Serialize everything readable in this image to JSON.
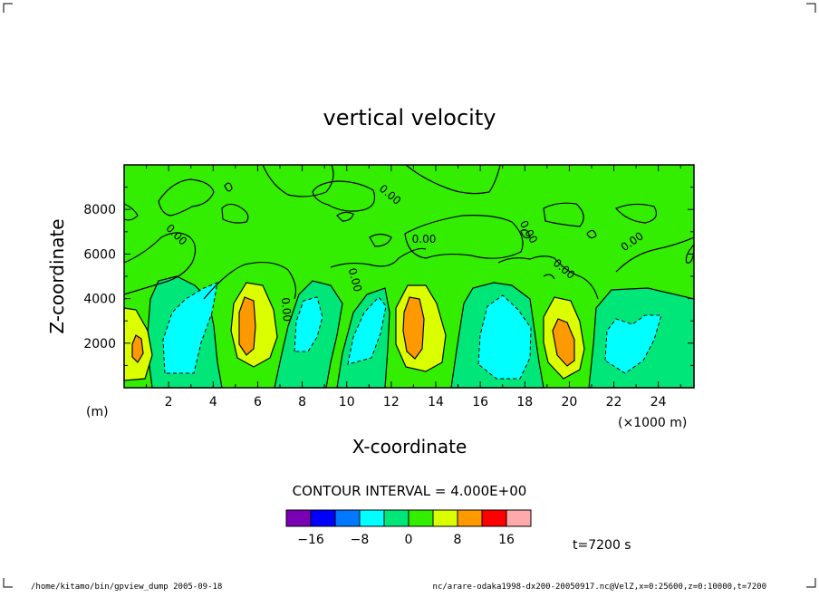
{
  "chart_data": {
    "type": "contour",
    "title": "vertical velocity",
    "xlabel": "X-coordinate",
    "ylabel": "Z-coordinate",
    "x_unit_label": "(m)",
    "x_scale_label": "(×1000 m)",
    "xlim": [
      0,
      25.6
    ],
    "ylim": [
      0,
      10000
    ],
    "x_ticks": [
      2,
      4,
      6,
      8,
      10,
      12,
      14,
      16,
      18,
      20,
      22,
      24
    ],
    "x_tick_labels": [
      "2",
      "4",
      "6",
      "8",
      "10",
      "12",
      "14",
      "16",
      "18",
      "20",
      "22",
      "24"
    ],
    "y_ticks": [
      2000,
      4000,
      6000,
      8000
    ],
    "y_tick_labels": [
      "2000",
      "4000",
      "6000",
      "8000"
    ],
    "contour_interval_label": "CONTOUR INTERVAL = 4.000E+00",
    "contour_labels": [
      "0.00",
      "0.00",
      "0.00",
      "0.00",
      "0.00",
      "0.00",
      "0.00",
      "0.00"
    ],
    "colorbar": {
      "colors": [
        "#7a00b4",
        "#0000ff",
        "#0078ff",
        "#00ffff",
        "#00e678",
        "#33ee00",
        "#dcff00",
        "#ff9900",
        "#ff0000",
        "#ffaaaa"
      ],
      "tick_values": [
        -16,
        -8,
        0,
        8,
        16
      ],
      "tick_labels": [
        "−16",
        "−8",
        "0",
        "8",
        "16"
      ]
    },
    "time_label": "t=7200 s"
  },
  "footer": {
    "left": "/home/kitamo/bin/gpview_dump  2005-09-18",
    "right": "nc/arare-odaka1998-dx200-20050917.nc@VelZ,x=0:25600,z=0:10000,t=7200"
  }
}
